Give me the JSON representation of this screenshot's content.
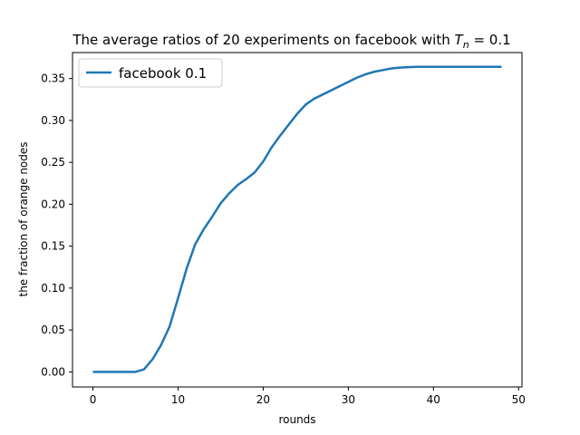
{
  "chart_data": {
    "type": "line",
    "title": "The average ratios of 20 experiments on facebook with ",
    "title_math": {
      "symbol": "T",
      "subscript": "n",
      "relation": " = 0.1"
    },
    "xlabel": "rounds",
    "ylabel": "the fraction of orange nodes",
    "xlim": [
      -2.4,
      50.4
    ],
    "ylim": [
      -0.018,
      0.381
    ],
    "xticks": [
      0,
      10,
      20,
      30,
      40,
      50
    ],
    "xtick_labels": [
      "0",
      "10",
      "20",
      "30",
      "40",
      "50"
    ],
    "yticks": [
      0.0,
      0.05,
      0.1,
      0.15,
      0.2,
      0.25,
      0.3,
      0.35
    ],
    "ytick_labels": [
      "0.00",
      "0.05",
      "0.10",
      "0.15",
      "0.20",
      "0.25",
      "0.30",
      "0.35"
    ],
    "grid": false,
    "legend_position": "top-left",
    "series": [
      {
        "name": "facebook 0.1",
        "color": "#1f77b4",
        "x": [
          0,
          1,
          2,
          3,
          4,
          5,
          6,
          7,
          8,
          9,
          10,
          11,
          12,
          13,
          14,
          15,
          16,
          17,
          18,
          19,
          20,
          21,
          22,
          23,
          24,
          25,
          26,
          27,
          28,
          29,
          30,
          31,
          32,
          33,
          34,
          35,
          36,
          37,
          38,
          39,
          40,
          41,
          42,
          43,
          44,
          45,
          46,
          47,
          48
        ],
        "y": [
          0.0,
          0.0,
          0.0,
          0.0,
          0.0,
          0.0,
          0.003,
          0.015,
          0.032,
          0.054,
          0.088,
          0.123,
          0.152,
          0.17,
          0.185,
          0.201,
          0.213,
          0.223,
          0.23,
          0.238,
          0.251,
          0.268,
          0.282,
          0.295,
          0.308,
          0.319,
          0.326,
          0.331,
          0.336,
          0.341,
          0.346,
          0.351,
          0.355,
          0.358,
          0.36,
          0.362,
          0.363,
          0.3635,
          0.364,
          0.364,
          0.364,
          0.364,
          0.364,
          0.364,
          0.364,
          0.364,
          0.364,
          0.364,
          0.364
        ]
      }
    ]
  }
}
